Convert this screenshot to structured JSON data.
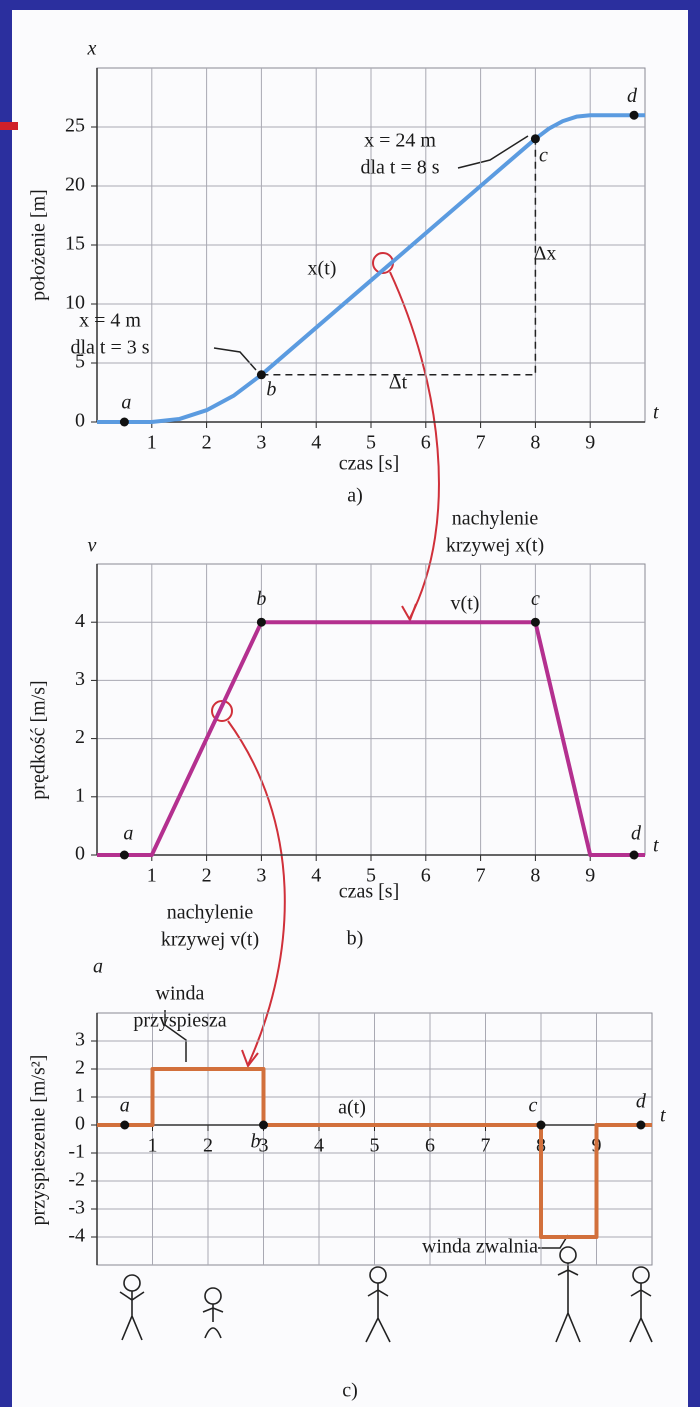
{
  "chart_data": [
    {
      "type": "line",
      "caption": "a)",
      "y_symbol": "x",
      "x_symbol": "t",
      "y_label": "położenie [m]",
      "x_label": "czas [s]",
      "xlim": [
        0,
        10
      ],
      "ylim": [
        0,
        30
      ],
      "xticks": [
        1,
        2,
        3,
        4,
        5,
        6,
        7,
        8,
        9
      ],
      "yticks": [
        0,
        5,
        10,
        15,
        20,
        25
      ],
      "grid": true,
      "series": [
        {
          "color": "#5b9be0",
          "x": [
            0,
            1,
            1.5,
            2,
            2.5,
            3,
            8,
            8.25,
            8.5,
            8.75,
            9,
            10
          ],
          "values": [
            0,
            0,
            0.25,
            1,
            2.25,
            4,
            24,
            24.875,
            25.5,
            25.875,
            26,
            26
          ]
        }
      ],
      "points": [
        {
          "label": "a",
          "x": 0.5,
          "y": 0
        },
        {
          "label": "b",
          "x": 3,
          "y": 4
        },
        {
          "label": "c",
          "x": 8,
          "y": 24
        },
        {
          "label": "d",
          "x": 9.8,
          "y": 26
        }
      ],
      "annotations": [
        {
          "lines": [
            "x = 24 m",
            "dla t = 8 s"
          ]
        },
        {
          "lines": [
            "x = 4 m",
            "dla t = 3 s"
          ]
        },
        {
          "lines": [
            "x(t)"
          ]
        },
        {
          "lines": [
            "Δx"
          ]
        },
        {
          "lines": [
            "Δt"
          ]
        }
      ]
    },
    {
      "type": "line",
      "caption": "b)",
      "y_symbol": "v",
      "x_symbol": "t",
      "y_label": "prędkość [m/s]",
      "x_label": "czas [s]",
      "xlim": [
        0,
        10
      ],
      "ylim": [
        0,
        5
      ],
      "xticks": [
        1,
        2,
        3,
        4,
        5,
        6,
        7,
        8,
        9
      ],
      "yticks": [
        0,
        1,
        2,
        3,
        4
      ],
      "grid": true,
      "series": [
        {
          "color": "#b4308f",
          "x": [
            0,
            1,
            3,
            8,
            9,
            10
          ],
          "values": [
            0,
            0,
            4,
            4,
            0,
            0
          ]
        }
      ],
      "points": [
        {
          "label": "a",
          "x": 0.5,
          "y": 0
        },
        {
          "label": "b",
          "x": 3,
          "y": 4
        },
        {
          "label": "c",
          "x": 8,
          "y": 4
        },
        {
          "label": "d",
          "x": 9.8,
          "y": 0
        }
      ],
      "annotations": [
        {
          "lines": [
            "nachylenie",
            "krzywej x(t)"
          ]
        },
        {
          "lines": [
            "v(t)"
          ]
        },
        {
          "lines": [
            "nachylenie",
            "krzywej v(t)"
          ]
        }
      ]
    },
    {
      "type": "line",
      "caption": "c)",
      "y_symbol": "a",
      "x_symbol": "t",
      "y_label": "przyspieszenie [m/s²]",
      "xlim": [
        0,
        10
      ],
      "ylim": [
        -5,
        4
      ],
      "xticks": [
        1,
        2,
        3,
        4,
        5,
        6,
        7,
        8,
        9
      ],
      "yticks": [
        -4,
        -3,
        -2,
        -1,
        0,
        1,
        2,
        3
      ],
      "grid": true,
      "series": [
        {
          "color": "#d2703c",
          "x": [
            0,
            1,
            1,
            3,
            3,
            8,
            8,
            9,
            9,
            10
          ],
          "values": [
            0,
            0,
            2,
            2,
            0,
            0,
            -4,
            -4,
            0,
            0
          ]
        }
      ],
      "points": [
        {
          "label": "a",
          "x": 0.5,
          "y": 0
        },
        {
          "label": "b",
          "x": 3,
          "y": 0
        },
        {
          "label": "c",
          "x": 8,
          "y": 0
        },
        {
          "label": "d",
          "x": 9.8,
          "y": 0
        }
      ],
      "annotations": [
        {
          "lines": [
            "winda",
            "przyspiesza"
          ]
        },
        {
          "lines": [
            "a(t)"
          ]
        },
        {
          "lines": [
            "winda zwalnia"
          ]
        }
      ]
    }
  ]
}
